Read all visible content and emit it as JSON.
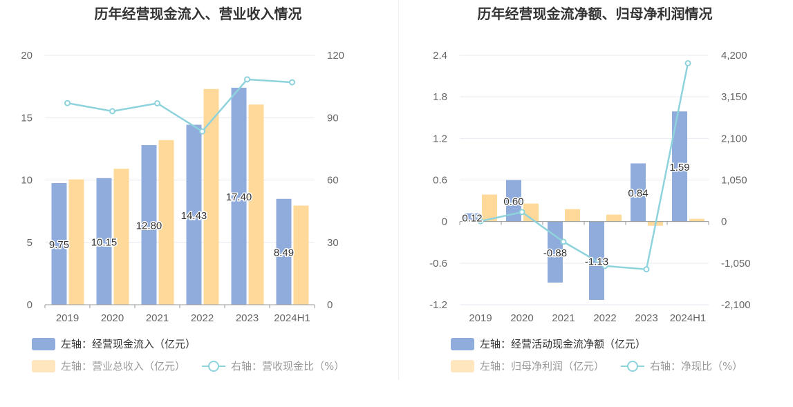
{
  "chart_data": [
    {
      "type": "bar",
      "title": "历年经营现金流入、营业收入情况",
      "categories": [
        "2019",
        "2020",
        "2021",
        "2022",
        "2023",
        "2024H1"
      ],
      "y_left": {
        "ticks": [
          "0",
          "5",
          "10",
          "15",
          "20"
        ],
        "min": 0,
        "max": 20
      },
      "y_right": {
        "ticks": [
          "0",
          "30",
          "60",
          "90",
          "120"
        ],
        "min": 0,
        "max": 120
      },
      "series": [
        {
          "name": "左轴：经营现金流入（亿元）",
          "axis": "left",
          "kind": "bar",
          "color": "#8facdc",
          "values": [
            9.75,
            10.15,
            12.8,
            14.43,
            17.4,
            8.49
          ],
          "labels": [
            "9.75",
            "10.15",
            "12.80",
            "14.43",
            "17.40",
            "8.49"
          ]
        },
        {
          "name": "左轴：营业总收入（亿元）",
          "axis": "left",
          "kind": "bar",
          "color": "#ffd99a",
          "values": [
            10.05,
            10.9,
            13.2,
            17.3,
            16.05,
            7.95
          ]
        },
        {
          "name": "右轴：营收现金比（%）",
          "axis": "right",
          "kind": "line",
          "color": "#8ed3dc",
          "values": [
            97.0,
            93.1,
            96.9,
            83.4,
            108.4,
            107.0
          ]
        }
      ]
    },
    {
      "type": "bar",
      "title": "历年经营现金流净额、归母净利润情况",
      "categories": [
        "2019",
        "2020",
        "2021",
        "2022",
        "2023",
        "2024H1"
      ],
      "y_left": {
        "ticks": [
          "-1.2",
          "-0.6",
          "0",
          "0.6",
          "1.2",
          "1.8",
          "2.4"
        ],
        "min": -1.2,
        "max": 2.4
      },
      "y_right": {
        "ticks": [
          "-2,100",
          "-1,050",
          "0",
          "1,050",
          "2,100",
          "3,150",
          "4,200"
        ],
        "min": -2100,
        "max": 4200
      },
      "series": [
        {
          "name": "左轴：经营活动现金流净额（亿元）",
          "axis": "left",
          "kind": "bar",
          "color": "#8facdc",
          "values": [
            0.12,
            0.6,
            -0.88,
            -1.13,
            0.84,
            1.59
          ],
          "labels": [
            "0.12",
            "0.60",
            "-0.88",
            "-1.13",
            "0.84",
            "1.59"
          ]
        },
        {
          "name": "左轴：归母净利润（亿元）",
          "axis": "left",
          "kind": "bar",
          "color": "#ffd99a",
          "values": [
            0.39,
            0.26,
            0.18,
            0.1,
            -0.06,
            0.04
          ]
        },
        {
          "name": "右轴：净现比（%）",
          "axis": "right",
          "kind": "line",
          "color": "#8ed3dc",
          "values": [
            10,
            240,
            -510,
            -1120,
            -1205,
            4000
          ]
        }
      ]
    }
  ]
}
